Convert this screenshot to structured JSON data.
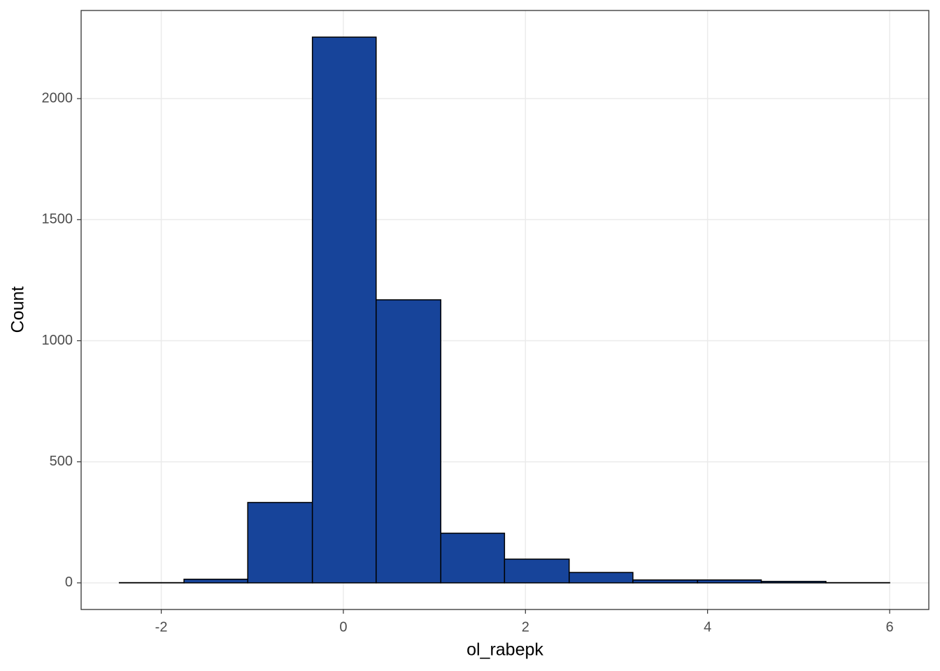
{
  "chart_data": {
    "type": "histogram",
    "x_label": "ol_rabepk",
    "y_label": "Count",
    "bins": [
      -2.46,
      -1.75,
      -1.05,
      -0.34,
      0.36,
      1.07,
      1.77,
      2.48,
      3.18,
      3.89,
      4.59,
      5.3,
      6.0
    ],
    "counts": [
      1,
      15,
      332,
      2254,
      1169,
      205,
      98,
      43,
      12,
      12,
      6,
      1
    ],
    "color": "#17449a",
    "xlim": [
      -2.88,
      6.43
    ],
    "xticks": [
      -2,
      0,
      2,
      4,
      6
    ],
    "ylim": [
      -110,
      2364
    ],
    "yticks": [
      0,
      500,
      1000,
      1500,
      2000
    ],
    "grid": true
  }
}
